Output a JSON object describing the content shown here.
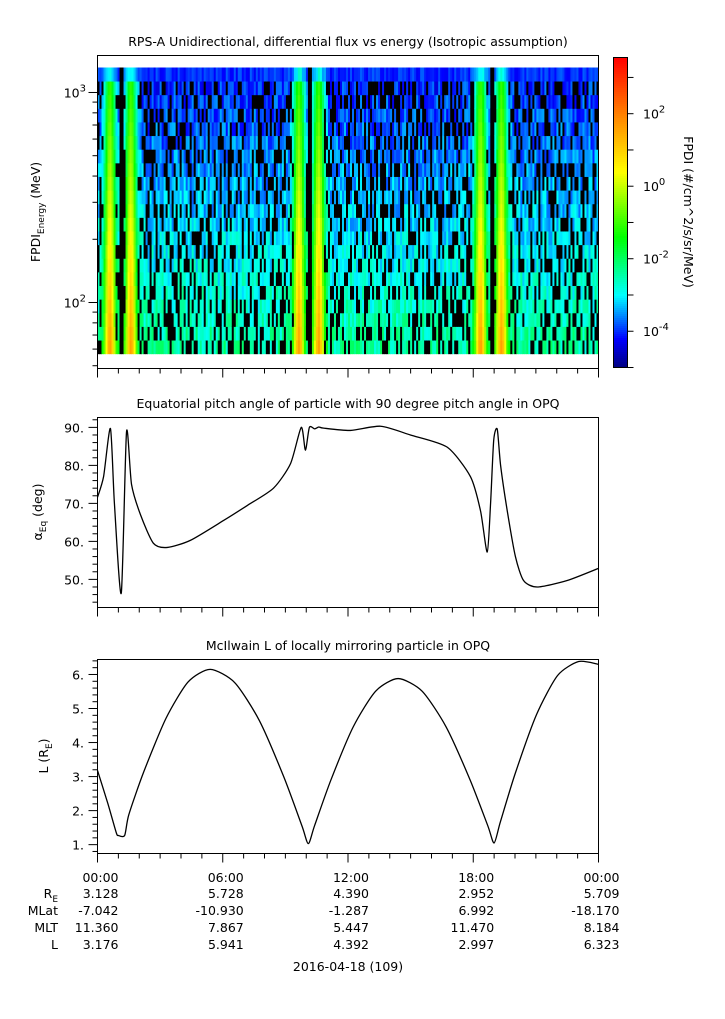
{
  "chart_data": [
    {
      "type": "heatmap",
      "title": "RPS-A Unidirectional, differential flux vs energy (Isotropic assumption)",
      "ylabel_main": "FPDI",
      "ylabel_sub": "Energy",
      "ylabel_unit": " (MeV)",
      "xlim_hours": [
        0,
        24
      ],
      "ylim": [
        48.5,
        1500
      ],
      "yscale": "log",
      "y_ticks": [
        {
          "value": 100,
          "base": "10",
          "exp": "2"
        },
        {
          "value": 1000,
          "base": "10",
          "exp": "3"
        }
      ],
      "energy_range_mev": [
        57,
        1315
      ],
      "energy_bins": 21,
      "belt_pass_band_centers_hours": [
        0.6,
        1.6,
        9.65,
        10.6,
        18.35,
        19.35
      ],
      "no_data_gaps_hours": [
        1.12,
        10.15,
        18.9
      ],
      "background_log_flux": {
        "low_energy": -2.4,
        "high_energy": -4.1
      },
      "band_peak_log_flux": {
        "low_energy": 1.6,
        "high_energy": -1.2
      },
      "fill_fraction_black": 0.33,
      "colorbar": {
        "label": "FPDI (#/cm^2/s/sr/MeV)",
        "zlim_log10": [
          -5,
          3.55
        ],
        "ticks": [
          {
            "value": 2,
            "base": "10",
            "exp": "2"
          },
          {
            "value": 0,
            "base": "10",
            "exp": "0"
          },
          {
            "value": -2,
            "base": "10",
            "exp": "-2"
          },
          {
            "value": -4,
            "base": "10",
            "exp": "-4"
          }
        ],
        "stops": [
          {
            "v": -5,
            "color": "#00007f"
          },
          {
            "v": -4.2,
            "color": "#0000ff"
          },
          {
            "v": -3,
            "color": "#00ffff"
          },
          {
            "v": -1.4,
            "color": "#00ff00"
          },
          {
            "v": 0.4,
            "color": "#ffff00"
          },
          {
            "v": 2,
            "color": "#ff8000"
          },
          {
            "v": 3.55,
            "color": "#ff0000"
          }
        ]
      }
    },
    {
      "type": "line",
      "title": "Equatorial pitch angle of particle with 90 degree pitch angle in OPQ",
      "ylabel_main": "α",
      "ylabel_sub": "Eq",
      "ylabel_unit": " (deg)",
      "xlim_hours": [
        0,
        24
      ],
      "ylim": [
        42.6,
        92.6
      ],
      "y_ticks": [
        {
          "value": 50,
          "label": "50."
        },
        {
          "value": 60,
          "label": "60."
        },
        {
          "value": 70,
          "label": "70."
        },
        {
          "value": 80,
          "label": "80."
        },
        {
          "value": 90,
          "label": "90."
        }
      ],
      "minor_step": 2,
      "points": [
        [
          0,
          71.6
        ],
        [
          0.29,
          77
        ],
        [
          0.62,
          89.7
        ],
        [
          0.81,
          70
        ],
        [
          1.14,
          46.4
        ],
        [
          1.39,
          88.8
        ],
        [
          1.63,
          75
        ],
        [
          2.06,
          67
        ],
        [
          2.68,
          59.5
        ],
        [
          3.35,
          58.4
        ],
        [
          4.46,
          60.3
        ],
        [
          6.04,
          65.5
        ],
        [
          7.19,
          69.5
        ],
        [
          8.43,
          74
        ],
        [
          9.25,
          80.5
        ],
        [
          9.76,
          90
        ],
        [
          9.96,
          84
        ],
        [
          10.15,
          90
        ],
        [
          10.4,
          89.6
        ],
        [
          10.6,
          90.1
        ],
        [
          10.83,
          89.8
        ],
        [
          12.12,
          89.2
        ],
        [
          13.56,
          90.3
        ],
        [
          14.99,
          88
        ],
        [
          16.75,
          84.8
        ],
        [
          17.87,
          77
        ],
        [
          18.35,
          68
        ],
        [
          18.67,
          57.2
        ],
        [
          18.83,
          70
        ],
        [
          18.98,
          86.6
        ],
        [
          19.15,
          89.5
        ],
        [
          19.31,
          80
        ],
        [
          19.63,
          68
        ],
        [
          20.02,
          56
        ],
        [
          20.41,
          49.7
        ],
        [
          21.06,
          48
        ],
        [
          22.5,
          49.7
        ],
        [
          24,
          52.9
        ]
      ]
    },
    {
      "type": "line",
      "title": "McIlwain L of locally mirroring particle in OPQ",
      "ylabel_main": "L (R",
      "ylabel_sub": "E",
      "ylabel_unit": ")",
      "xlim_hours": [
        0,
        24
      ],
      "ylim": [
        0.74,
        6.44
      ],
      "y_ticks": [
        {
          "value": 1,
          "label": "1."
        },
        {
          "value": 2,
          "label": "2."
        },
        {
          "value": 3,
          "label": "3."
        },
        {
          "value": 4,
          "label": "4."
        },
        {
          "value": 5,
          "label": "5."
        },
        {
          "value": 6,
          "label": "6."
        }
      ],
      "minor_step": 0.2,
      "points": [
        [
          0,
          3.18
        ],
        [
          0.5,
          2.2
        ],
        [
          0.9,
          1.35
        ],
        [
          1.0,
          1.27
        ],
        [
          1.3,
          1.27
        ],
        [
          1.5,
          1.88
        ],
        [
          2.21,
          3.13
        ],
        [
          3.28,
          4.71
        ],
        [
          4.34,
          5.78
        ],
        [
          5.4,
          6.15
        ],
        [
          6.575,
          5.76
        ],
        [
          7.75,
          4.65
        ],
        [
          8.925,
          2.99
        ],
        [
          9.8,
          1.54
        ],
        [
          10.1,
          1.03
        ],
        [
          10.4,
          1.56
        ],
        [
          11.175,
          2.89
        ],
        [
          12.25,
          4.46
        ],
        [
          13.325,
          5.51
        ],
        [
          14.4,
          5.88
        ],
        [
          15.55,
          5.51
        ],
        [
          16.7,
          4.46
        ],
        [
          17.85,
          2.9
        ],
        [
          18.7,
          1.55
        ],
        [
          19.0,
          1.05
        ],
        [
          19.3,
          1.67
        ],
        [
          20.01,
          3.09
        ],
        [
          21.03,
          4.82
        ],
        [
          22.04,
          5.97
        ],
        [
          23.05,
          6.38
        ],
        [
          24,
          6.3
        ]
      ]
    }
  ],
  "x_axis": {
    "tick_labels": [
      "00:00",
      "06:00",
      "12:00",
      "18:00",
      "00:00"
    ],
    "ephemeris": [
      {
        "label": "R",
        "label_sub": "E",
        "values": [
          "3.128",
          "5.728",
          "4.390",
          "2.952",
          "5.709"
        ]
      },
      {
        "label": "MLat",
        "label_sub": "",
        "values": [
          "-7.042",
          "-10.930",
          "-1.287",
          "6.992",
          "-18.170"
        ]
      },
      {
        "label": "MLT",
        "label_sub": "",
        "values": [
          "11.360",
          "7.867",
          "5.447",
          "11.470",
          "8.184"
        ]
      },
      {
        "label": "L",
        "label_sub": "",
        "values": [
          "3.176",
          "5.941",
          "4.392",
          "2.997",
          "6.323"
        ]
      }
    ],
    "date_label": "2016-04-18 (109)"
  }
}
